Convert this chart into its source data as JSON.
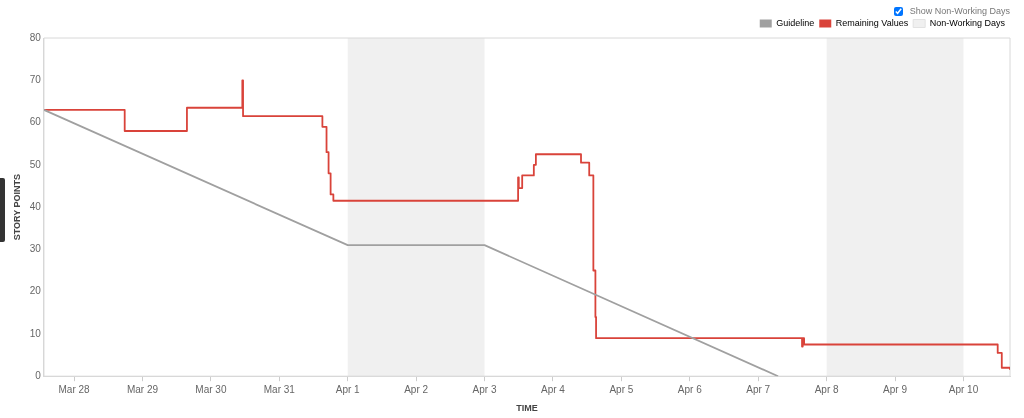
{
  "chart_data": {
    "type": "line",
    "xlabel": "TIME",
    "ylabel": "STORY POINTS",
    "xlim": [
      "--03-27T13:26",
      "--04-10T16:19"
    ],
    "ylim": [
      0,
      80
    ],
    "xticks": [
      {
        "value": "--03-28",
        "label": "Mar 28"
      },
      {
        "value": "--03-29",
        "label": "Mar 29"
      },
      {
        "value": "--03-30",
        "label": "Mar 30"
      },
      {
        "value": "--03-31",
        "label": "Mar 31"
      },
      {
        "value": "--04-01",
        "label": "Apr 1"
      },
      {
        "value": "--04-02",
        "label": "Apr 2"
      },
      {
        "value": "--04-03",
        "label": "Apr 3"
      },
      {
        "value": "--04-04",
        "label": "Apr 4"
      },
      {
        "value": "--04-05",
        "label": "Apr 5"
      },
      {
        "value": "--04-06",
        "label": "Apr 6"
      },
      {
        "value": "--04-07",
        "label": "Apr 7"
      },
      {
        "value": "--04-08",
        "label": "Apr 8"
      },
      {
        "value": "--04-09",
        "label": "Apr 9"
      },
      {
        "value": "--04-10",
        "label": "Apr 10"
      }
    ],
    "yticks": [
      0,
      10,
      20,
      30,
      40,
      50,
      60,
      70,
      80
    ],
    "grid": false,
    "legend": "top right",
    "marker": "none",
    "series": [
      {
        "name": "Guideline",
        "color": "#a0a0a0",
        "x": [
          "--03-27T13:26",
          "--04-01T00:00",
          "--04-03T00:00",
          "--04-07T06:58"
        ],
        "values": [
          63,
          31,
          31,
          0
        ]
      },
      {
        "name": "Remaining Values",
        "type": "step",
        "color": "#d9433a",
        "x": [
          "--03-27T13:26",
          "--03-28T17:46",
          "--03-29T15:36",
          "--03-30T11:02",
          "--03-30T11:17",
          "--03-31T15:07",
          "--03-31T16:34",
          "--03-31T17:17",
          "--03-31T18:00",
          "--03-31T18:58",
          "--04-03T11:46",
          "--04-03T12:00",
          "--04-03T12:14",
          "--04-03T13:12",
          "--04-03T17:17",
          "--04-03T18:00",
          "--04-04T09:50",
          "--04-04T12:43",
          "--04-04T14:10",
          "--04-04T14:53",
          "--04-04T15:07",
          "--04-07T15:22",
          "--04-07T15:36",
          "--04-07T16:05",
          "--04-10T12:00",
          "--04-10T13:26",
          "--04-10T16:19"
        ],
        "values": [
          63,
          58,
          63.5,
          70,
          61.5,
          59,
          53,
          48,
          43,
          41.5,
          47,
          44.5,
          44.5,
          47.5,
          50,
          52.5,
          50.5,
          47.5,
          25,
          14,
          9,
          7,
          9,
          7.5,
          5.5,
          2,
          1.5
        ]
      }
    ],
    "bands": [
      {
        "axis": "x",
        "from": "--04-01",
        "to": "--04-03",
        "label": "Non-Working Days",
        "color": "#f0f0f0"
      },
      {
        "axis": "x",
        "from": "--04-08",
        "to": "--04-10",
        "color": "#f0f0f0"
      }
    ],
    "annotations": [
      "Show Non-Working Days"
    ]
  }
}
